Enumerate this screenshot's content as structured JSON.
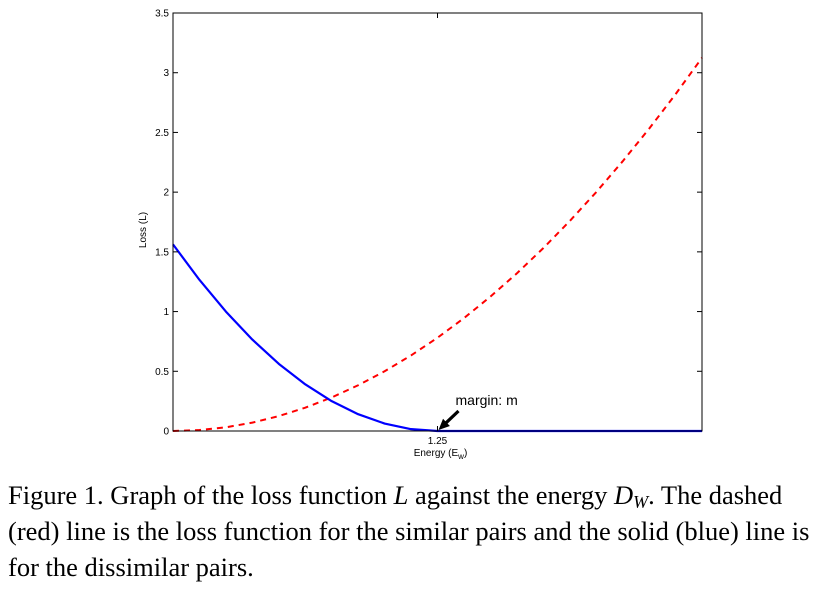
{
  "chart_data": {
    "type": "line",
    "title": "",
    "xlabel": "Energy (E",
    "xlabel_sub": "w",
    "xlabel_close": ")",
    "ylabel": "Loss (L)",
    "xlim": [
      0,
      2.5
    ],
    "ylim": [
      0,
      3.5
    ],
    "x_ticks": [
      {
        "value": 1.25,
        "label": "1.25"
      }
    ],
    "y_ticks": [
      {
        "value": 0,
        "label": "0"
      },
      {
        "value": 0.5,
        "label": "0.5"
      },
      {
        "value": 1,
        "label": "1"
      },
      {
        "value": 1.5,
        "label": "1.5"
      },
      {
        "value": 2,
        "label": "2"
      },
      {
        "value": 2.5,
        "label": "2.5"
      },
      {
        "value": 3,
        "label": "3"
      },
      {
        "value": 3.5,
        "label": "3.5"
      }
    ],
    "grid": false,
    "legend": null,
    "margin": 1.25,
    "series": [
      {
        "style": "dashed",
        "color": "#ff0000",
        "x": [
          0,
          0.125,
          0.25,
          0.375,
          0.5,
          0.625,
          0.75,
          0.875,
          1.0,
          1.125,
          1.25,
          1.375,
          1.5,
          1.625,
          1.75,
          1.875,
          2.0,
          2.125,
          2.25,
          2.375,
          2.5
        ],
        "values": [
          0,
          0.008,
          0.031,
          0.07,
          0.125,
          0.195,
          0.281,
          0.383,
          0.5,
          0.633,
          0.781,
          0.945,
          1.125,
          1.32,
          1.531,
          1.758,
          2.0,
          2.258,
          2.531,
          2.82,
          3.125
        ]
      },
      {
        "style": "solid",
        "color": "#0000ff",
        "x": [
          0,
          0.125,
          0.25,
          0.375,
          0.5,
          0.625,
          0.75,
          0.875,
          1.0,
          1.125,
          1.25,
          1.375,
          1.5,
          1.625,
          1.75,
          1.875,
          2.0,
          2.125,
          2.25,
          2.375,
          2.5
        ],
        "values": [
          1.5625,
          1.2656,
          1.0,
          0.7656,
          0.5625,
          0.3906,
          0.25,
          0.1406,
          0.0625,
          0.0156,
          0,
          0,
          0,
          0,
          0,
          0,
          0,
          0,
          0,
          0,
          0
        ]
      }
    ],
    "annotations": [
      {
        "text": "margin: m",
        "arrow_to_x": 1.25,
        "arrow_to_y": 0
      }
    ]
  },
  "caption": {
    "prefix": "Figure 1. Graph of the loss function ",
    "loss_symbol": "L",
    "middle": " against the energy ",
    "energy_symbol": "D",
    "energy_sub": "W",
    "suffix": ". The dashed (red) line is the loss function for the similar pairs and the solid (blue) line is for the dissimilar pairs."
  }
}
